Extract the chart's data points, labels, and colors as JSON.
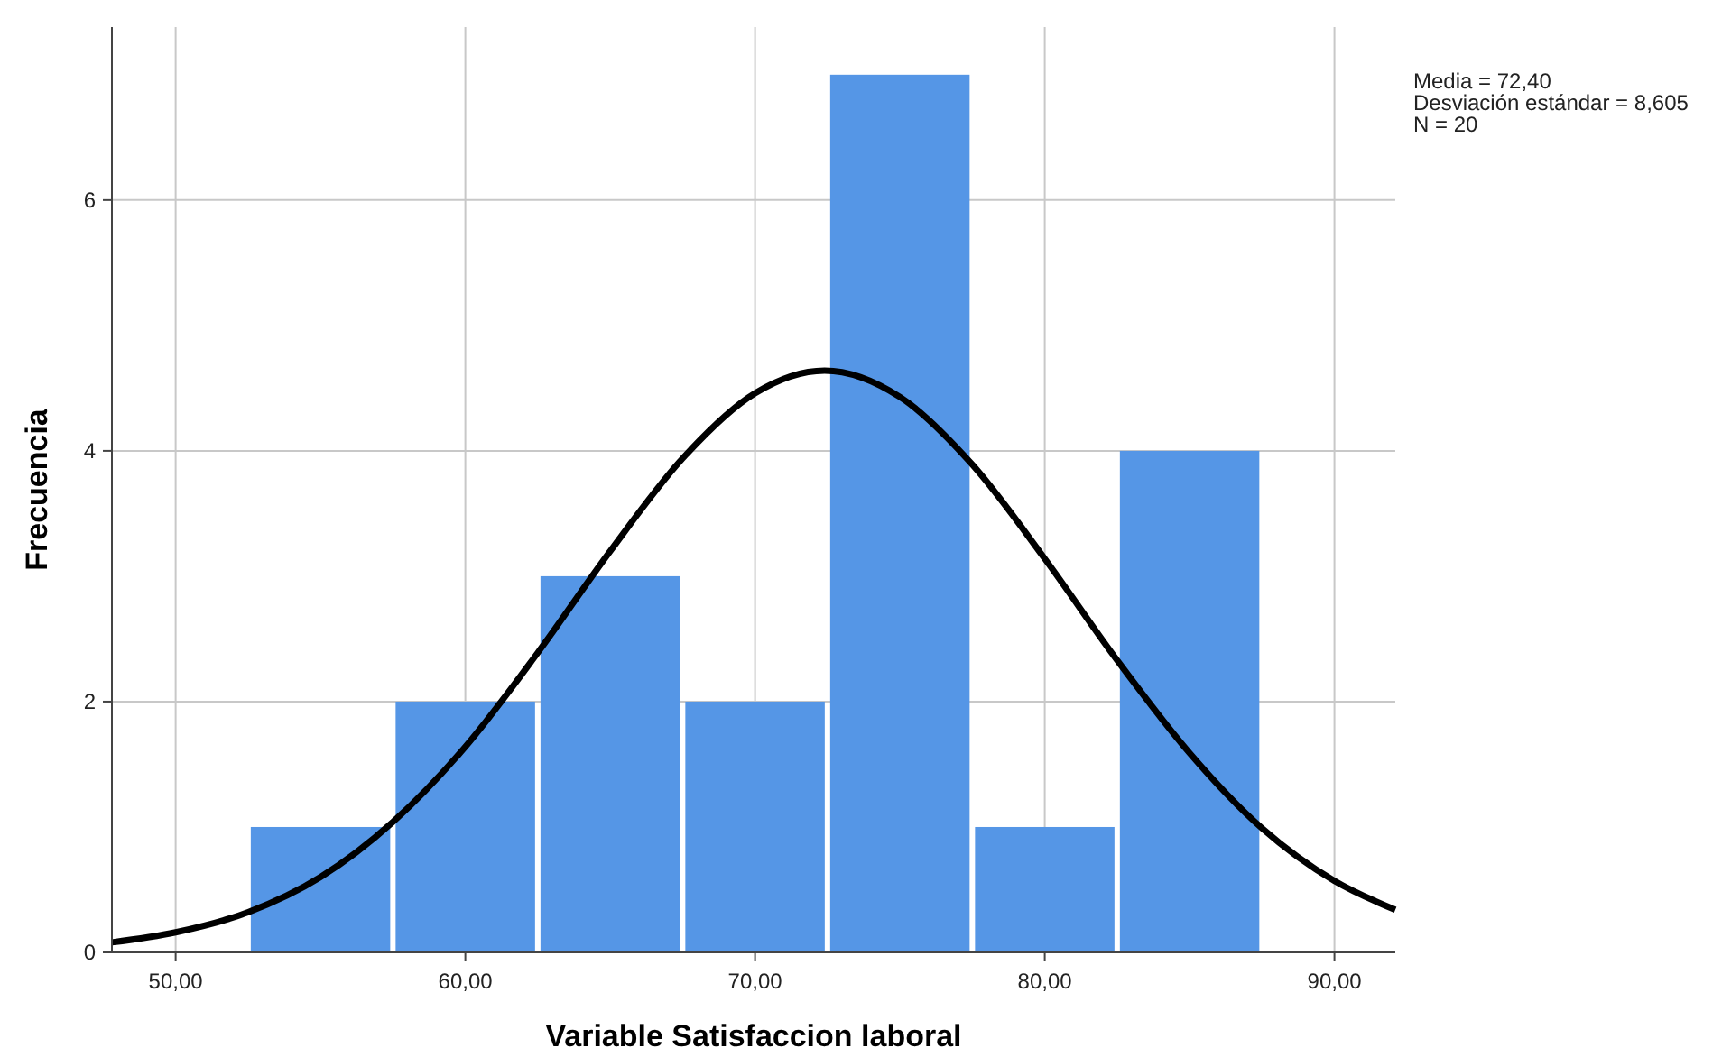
{
  "chart_data": {
    "type": "histogram",
    "xlabel": "Variable Satisfaccion laboral",
    "ylabel": "Frecuencia",
    "bins": [
      52.5,
      57.5,
      62.5,
      67.5,
      72.5,
      77.5,
      82.5,
      87.5
    ],
    "values": [
      1,
      2,
      3,
      2,
      7,
      1,
      4
    ],
    "color": "#5596e6",
    "series": [
      {
        "type": "line",
        "color": "#000000",
        "x": [
          47.8,
          50,
          52.5,
          55,
          57.5,
          60,
          62.5,
          65,
          67.5,
          70,
          72.4,
          75,
          77.5,
          80,
          82.5,
          85,
          87.5,
          90,
          92.1
        ],
        "values": [
          0.08,
          0.16,
          0.32,
          0.6,
          1.04,
          1.64,
          2.39,
          3.2,
          3.94,
          4.46,
          4.64,
          4.43,
          3.89,
          3.14,
          2.33,
          1.59,
          0.99,
          0.57,
          0.34
        ]
      }
    ],
    "xlim": [
      47.8,
      92.1
    ],
    "xticks": [
      {
        "value": 50,
        "label": "50,00"
      },
      {
        "value": 60,
        "label": "60,00"
      },
      {
        "value": 70,
        "label": "70,00"
      },
      {
        "value": 80,
        "label": "80,00"
      },
      {
        "value": 90,
        "label": "90,00"
      }
    ],
    "ylim": [
      0,
      7.38
    ],
    "yticks": [
      0,
      2,
      4,
      6
    ],
    "grid": true,
    "marker": "none",
    "line_style": "solid",
    "annotations": [
      "Media = 72,40",
      "Desviación estándar = 8,605",
      "N = 20"
    ]
  }
}
